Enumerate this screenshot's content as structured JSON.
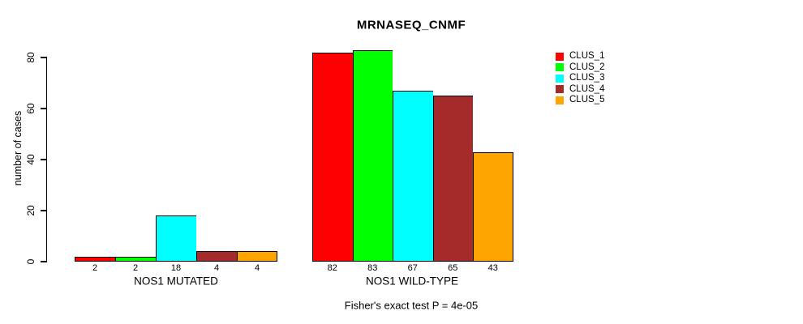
{
  "title": "MRNASEQ_CNMF",
  "chart_data": {
    "type": "bar",
    "title": "MRNASEQ_CNMF",
    "xlabel": "",
    "ylabel": "number of cases",
    "ylim": [
      0,
      80
    ],
    "yticks": [
      0,
      20,
      40,
      60,
      80
    ],
    "grid": false,
    "legend_position": "right",
    "categories": [
      "NOS1 MUTATED",
      "NOS1 WILD-TYPE"
    ],
    "series": [
      {
        "name": "CLUS_1",
        "color": "#FF0000",
        "values": [
          2,
          82
        ]
      },
      {
        "name": "CLUS_2",
        "color": "#00FF00",
        "values": [
          2,
          83
        ]
      },
      {
        "name": "CLUS_3",
        "color": "#00FFFF",
        "values": [
          18,
          67
        ]
      },
      {
        "name": "CLUS_4",
        "color": "#A52A2A",
        "values": [
          4,
          65
        ]
      },
      {
        "name": "CLUS_5",
        "color": "#FFA500",
        "values": [
          4,
          43
        ]
      }
    ],
    "bar_value_labels_shown": true,
    "annotation": "Fisher's exact test P = 4e-05"
  }
}
